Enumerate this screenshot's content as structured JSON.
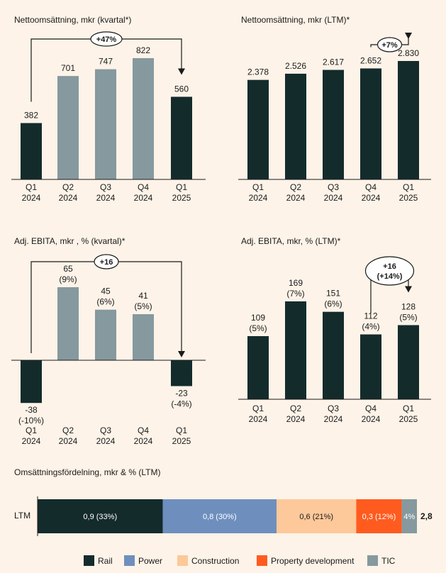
{
  "colors": {
    "background": "#fdf3e8",
    "dark": "#142b2c",
    "grey": "#85999f",
    "rail": "#142b2c",
    "power": "#6e8fbd",
    "construction": "#fdc89a",
    "property": "#ff5b1f",
    "tic": "#85999f"
  },
  "chart_data": [
    {
      "id": "ns_quarter",
      "type": "bar",
      "title": "Nettoomsättning, mkr  (kvartal*)",
      "categories": [
        "Q1\n2024",
        "Q2\n2024",
        "Q3\n2024",
        "Q4\n2024",
        "Q1\n2025"
      ],
      "values": [
        382,
        701,
        747,
        822,
        560
      ],
      "labels": [
        "382",
        "701",
        "747",
        "822",
        "560"
      ],
      "bar_colors": [
        "dark",
        "grey",
        "grey",
        "grey",
        "dark"
      ],
      "ylim": [
        0,
        900
      ],
      "comparison": {
        "from": 0,
        "to": 4,
        "label": "+47%"
      }
    },
    {
      "id": "ns_ltm",
      "type": "bar",
      "title": "Nettoomsättning, mkr (LTM)*",
      "categories": [
        "Q1\n2024",
        "Q2\n2024",
        "Q3\n2024",
        "Q4\n2024",
        "Q1\n2025"
      ],
      "values": [
        2378,
        2526,
        2617,
        2652,
        2830
      ],
      "labels": [
        "2.378",
        "2.526",
        "2.617",
        "2.652",
        "2.830"
      ],
      "bar_colors": [
        "dark",
        "dark",
        "dark",
        "dark",
        "dark"
      ],
      "ylim": [
        0,
        3100
      ],
      "comparison": {
        "from": 3,
        "to": 4,
        "label": "+7%"
      }
    },
    {
      "id": "ebita_quarter",
      "type": "bar",
      "title": "Adj. EBITA, mkr , % (kvartal)*",
      "categories": [
        "Q1\n2024",
        "Q2\n2024",
        "Q3\n2024",
        "Q4\n2024",
        "Q1\n2025"
      ],
      "values": [
        -38,
        65,
        45,
        41,
        -23
      ],
      "labels": [
        "-38\n(-10%)",
        "65\n(9%)",
        "45\n(6%)",
        "41\n(5%)",
        "-23\n(-4%)"
      ],
      "bar_colors": [
        "dark",
        "grey",
        "grey",
        "grey",
        "dark"
      ],
      "ylim": [
        -60,
        120
      ],
      "comparison": {
        "from": 0,
        "to": 4,
        "label": "+16"
      }
    },
    {
      "id": "ebita_ltm",
      "type": "bar",
      "title": "Adj. EBITA, mkr, % (LTM)*",
      "categories": [
        "Q1\n2024",
        "Q2\n2024",
        "Q3\n2024",
        "Q4\n2024",
        "Q1\n2025"
      ],
      "values": [
        109,
        169,
        151,
        112,
        128
      ],
      "labels": [
        "109\n(5%)",
        "169\n(7%)",
        "151\n(6%)",
        "112\n(4%)",
        "128\n(5%)"
      ],
      "bar_colors": [
        "dark",
        "dark",
        "dark",
        "dark",
        "dark"
      ],
      "ylim": [
        0,
        240
      ],
      "comparison": {
        "from": 3,
        "to": 4,
        "label": "+16\n(+14%)"
      }
    },
    {
      "id": "distribution",
      "type": "bar",
      "orientation": "horizontal-stacked",
      "title": "Omsättningsfördelning, mkr & % (LTM)",
      "row_label": "LTM",
      "total_label": "2,8",
      "segments": [
        {
          "name": "Rail",
          "value": 33,
          "label": "0,9 (33%)",
          "color": "rail"
        },
        {
          "name": "Power",
          "value": 30,
          "label": "0,8 (30%)",
          "color": "power"
        },
        {
          "name": "Construction",
          "value": 21,
          "label": "0,6 (21%)",
          "color": "construction"
        },
        {
          "name": "Property development",
          "value": 12,
          "label": "0,3 (12%)",
          "color": "property"
        },
        {
          "name": "TIC",
          "value": 4,
          "label": "4%",
          "color": "tic"
        }
      ]
    }
  ]
}
